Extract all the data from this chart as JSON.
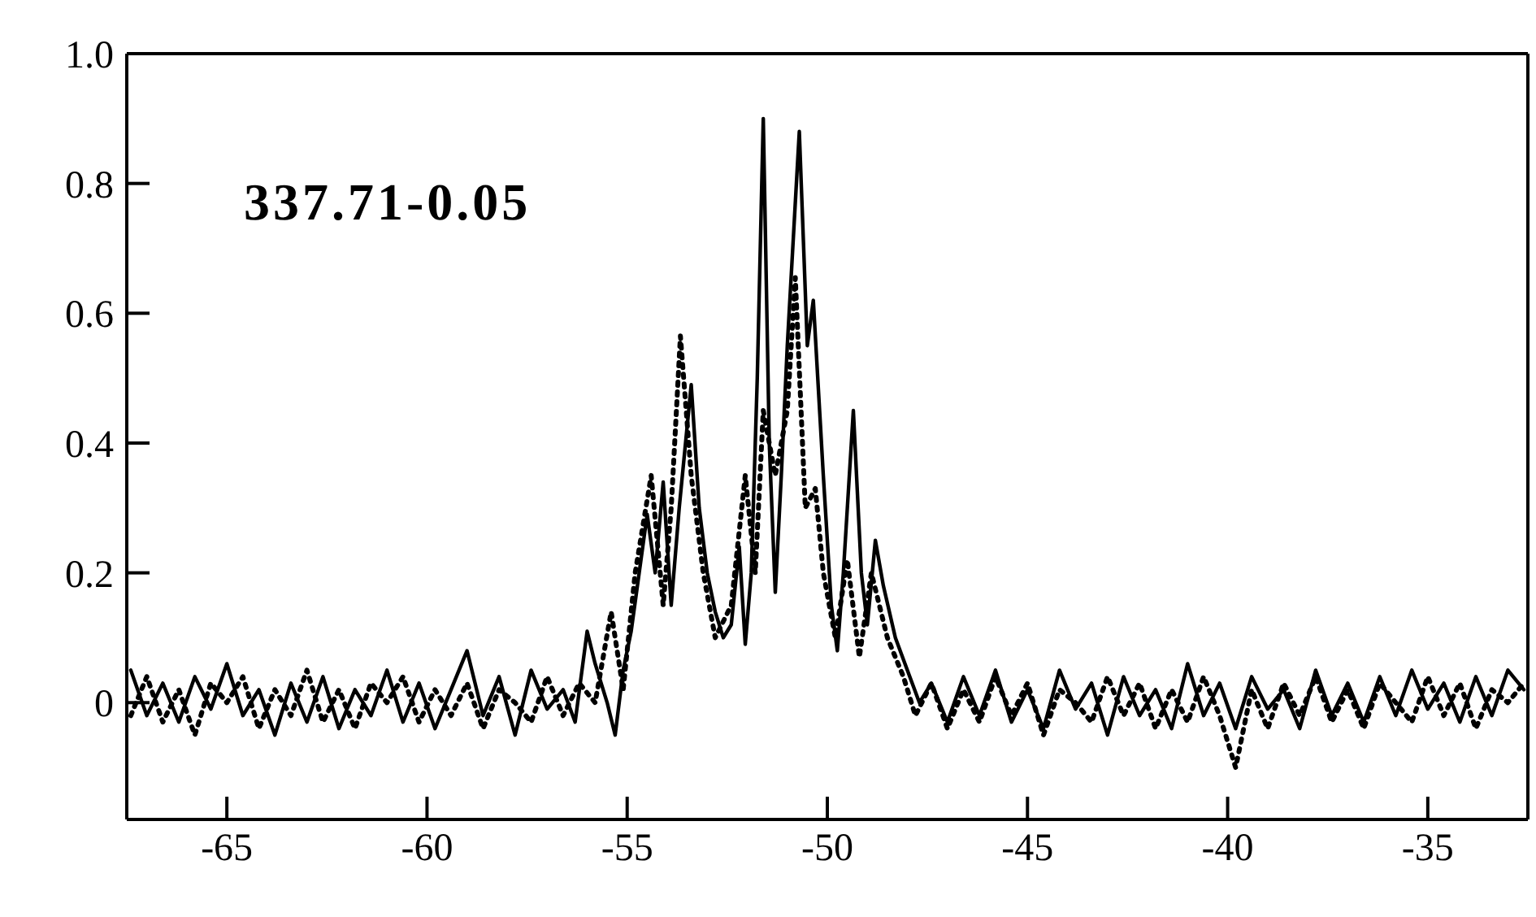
{
  "chart_data": {
    "type": "line",
    "annotations": [
      "337.71-0.05"
    ],
    "xlim": [
      -67.5,
      -32.5
    ],
    "xticks": [
      -65,
      -60,
      -55,
      -50,
      -45,
      -40,
      -35
    ],
    "ylim": [
      -0.18,
      1.0
    ],
    "yticks": [
      {
        "value": 0,
        "label": "0"
      },
      0.2,
      0.4,
      0.6,
      0.8,
      {
        "value": 1,
        "label": "1.0"
      }
    ],
    "marker": "none",
    "series": [
      {
        "color": "#000000",
        "line_style": "solid",
        "x": [
          -67.4,
          -67.0,
          -66.6,
          -66.2,
          -65.8,
          -65.4,
          -65.0,
          -64.6,
          -64.2,
          -63.8,
          -63.4,
          -63.0,
          -62.6,
          -62.2,
          -61.8,
          -61.4,
          -61.0,
          -60.6,
          -60.2,
          -59.8,
          -59.4,
          -59.0,
          -58.6,
          -58.2,
          -57.8,
          -57.4,
          -57.0,
          -56.6,
          -56.3,
          -56.0,
          -55.8,
          -55.5,
          -55.3,
          -55.1,
          -54.9,
          -54.7,
          -54.5,
          -54.3,
          -54.1,
          -53.9,
          -53.7,
          -53.4,
          -53.2,
          -53.0,
          -52.8,
          -52.6,
          -52.4,
          -52.2,
          -52.05,
          -51.9,
          -51.75,
          -51.6,
          -51.45,
          -51.3,
          -51.15,
          -51.0,
          -50.7,
          -50.5,
          -50.35,
          -50.1,
          -49.9,
          -49.75,
          -49.6,
          -49.35,
          -49.15,
          -49.0,
          -48.8,
          -48.6,
          -48.3,
          -48.0,
          -47.7,
          -47.4,
          -47.0,
          -46.6,
          -46.2,
          -45.8,
          -45.4,
          -45.0,
          -44.6,
          -44.2,
          -43.8,
          -43.4,
          -43.0,
          -42.6,
          -42.2,
          -41.8,
          -41.4,
          -41.0,
          -40.6,
          -40.2,
          -39.8,
          -39.4,
          -39.0,
          -38.6,
          -38.2,
          -37.8,
          -37.4,
          -37.0,
          -36.6,
          -36.2,
          -35.8,
          -35.4,
          -35.0,
          -34.6,
          -34.2,
          -33.8,
          -33.4,
          -33.0,
          -32.6
        ],
        "values": [
          0.05,
          -0.02,
          0.03,
          -0.03,
          0.04,
          -0.01,
          0.06,
          -0.02,
          0.02,
          -0.05,
          0.03,
          -0.03,
          0.04,
          -0.04,
          0.02,
          -0.02,
          0.05,
          -0.03,
          0.03,
          -0.04,
          0.02,
          0.08,
          -0.02,
          0.04,
          -0.05,
          0.05,
          -0.01,
          0.02,
          -0.03,
          0.11,
          0.06,
          0.0,
          -0.05,
          0.05,
          0.11,
          0.2,
          0.29,
          0.2,
          0.34,
          0.15,
          0.3,
          0.49,
          0.3,
          0.2,
          0.14,
          0.1,
          0.12,
          0.24,
          0.09,
          0.2,
          0.5,
          0.9,
          0.4,
          0.17,
          0.35,
          0.55,
          0.88,
          0.55,
          0.62,
          0.35,
          0.15,
          0.08,
          0.2,
          0.45,
          0.2,
          0.12,
          0.25,
          0.18,
          0.1,
          0.05,
          0.0,
          0.03,
          -0.03,
          0.04,
          -0.02,
          0.05,
          -0.03,
          0.02,
          -0.04,
          0.05,
          -0.01,
          0.03,
          -0.05,
          0.04,
          -0.02,
          0.02,
          -0.04,
          0.06,
          -0.02,
          0.03,
          -0.04,
          0.04,
          -0.01,
          0.02,
          -0.04,
          0.05,
          -0.02,
          0.03,
          -0.03,
          0.04,
          -0.02,
          0.05,
          -0.01,
          0.03,
          -0.03,
          0.04,
          -0.02,
          0.05,
          0.02
        ]
      },
      {
        "color": "#000000",
        "line_style": "dotted",
        "x": [
          -67.4,
          -67.0,
          -66.6,
          -66.2,
          -65.8,
          -65.4,
          -65.0,
          -64.6,
          -64.2,
          -63.8,
          -63.4,
          -63.0,
          -62.6,
          -62.2,
          -61.8,
          -61.4,
          -61.0,
          -60.6,
          -60.2,
          -59.8,
          -59.4,
          -59.0,
          -58.6,
          -58.2,
          -57.8,
          -57.4,
          -57.0,
          -56.6,
          -56.2,
          -55.8,
          -55.4,
          -55.1,
          -54.8,
          -54.4,
          -54.1,
          -53.9,
          -53.67,
          -53.4,
          -53.1,
          -52.8,
          -52.4,
          -52.05,
          -51.8,
          -51.6,
          -51.3,
          -51.0,
          -50.8,
          -50.55,
          -50.3,
          -50.1,
          -49.8,
          -49.5,
          -49.2,
          -48.9,
          -48.5,
          -48.1,
          -47.8,
          -47.4,
          -47.0,
          -46.6,
          -46.2,
          -45.8,
          -45.4,
          -45.0,
          -44.6,
          -44.2,
          -43.8,
          -43.4,
          -43.0,
          -42.6,
          -42.2,
          -41.8,
          -41.4,
          -41.0,
          -40.6,
          -40.2,
          -39.8,
          -39.4,
          -39.0,
          -38.6,
          -38.2,
          -37.8,
          -37.4,
          -37.0,
          -36.6,
          -36.2,
          -35.8,
          -35.4,
          -35.0,
          -34.6,
          -34.2,
          -33.8,
          -33.4,
          -33.0,
          -32.6
        ],
        "values": [
          -0.02,
          0.04,
          -0.03,
          0.02,
          -0.05,
          0.03,
          0.0,
          0.04,
          -0.04,
          0.02,
          -0.02,
          0.05,
          -0.03,
          0.02,
          -0.04,
          0.03,
          0.0,
          0.04,
          -0.03,
          0.02,
          -0.02,
          0.03,
          -0.04,
          0.02,
          0.0,
          -0.03,
          0.04,
          -0.02,
          0.03,
          0.0,
          0.14,
          0.02,
          0.2,
          0.35,
          0.15,
          0.3,
          0.565,
          0.35,
          0.2,
          0.1,
          0.15,
          0.35,
          0.2,
          0.45,
          0.35,
          0.45,
          0.655,
          0.3,
          0.33,
          0.2,
          0.1,
          0.22,
          0.07,
          0.2,
          0.1,
          0.04,
          -0.02,
          0.03,
          -0.04,
          0.02,
          -0.03,
          0.04,
          -0.02,
          0.03,
          -0.05,
          0.02,
          0.0,
          -0.03,
          0.04,
          -0.02,
          0.03,
          -0.04,
          0.02,
          -0.03,
          0.04,
          -0.02,
          -0.1,
          0.02,
          -0.04,
          0.03,
          -0.02,
          0.04,
          -0.03,
          0.02,
          -0.04,
          0.03,
          0.0,
          -0.03,
          0.04,
          -0.02,
          0.03,
          -0.04,
          0.02,
          0.0,
          0.03
        ]
      }
    ]
  }
}
